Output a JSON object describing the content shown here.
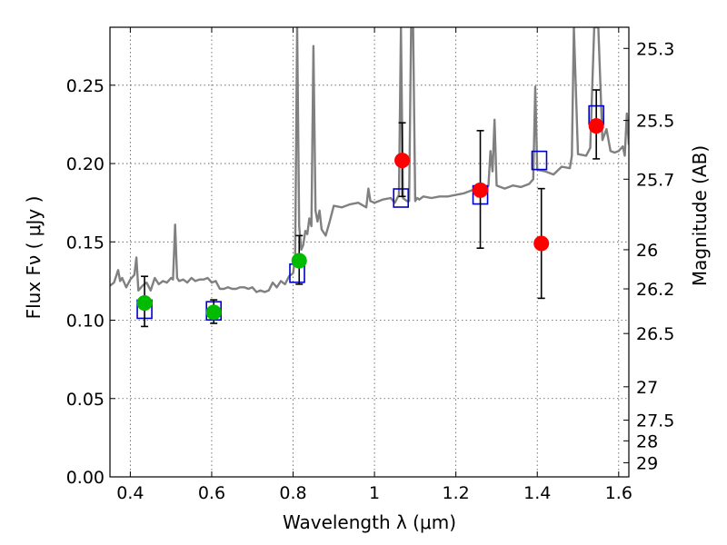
{
  "chart_data": {
    "type": "scatter",
    "xlabel": "Wavelength  λ (μm)",
    "ylabel": "Flux  Fν  ( μJy )",
    "ylabel_right": "Magnitude (AB)",
    "xlim": [
      0.35,
      1.625
    ],
    "ylim": [
      0.0,
      0.287
    ],
    "x_ticks": [
      0.4,
      0.6,
      0.8,
      1.0,
      1.2,
      1.4,
      1.6
    ],
    "x_tick_labels": [
      "0.4",
      "0.6",
      "0.8",
      "1",
      "1.2",
      "1.4",
      "1.6"
    ],
    "y_ticks": [
      0.0,
      0.05,
      0.1,
      0.15,
      0.2,
      0.25
    ],
    "y_tick_labels": [
      "0.00",
      "0.05",
      "0.10",
      "0.15",
      "0.20",
      "0.25"
    ],
    "mag_ticks": [
      {
        "label": "25.3",
        "flux": 0.2735
      },
      {
        "label": "25.5",
        "flux": 0.2275
      },
      {
        "label": "25.7",
        "flux": 0.19
      },
      {
        "label": "26",
        "flux": 0.145
      },
      {
        "label": "26.2",
        "flux": 0.12
      },
      {
        "label": "26.5",
        "flux": 0.0915
      },
      {
        "label": "27",
        "flux": 0.0575
      },
      {
        "label": "27.5",
        "flux": 0.0362
      },
      {
        "label": "28",
        "flux": 0.023
      },
      {
        "label": "29",
        "flux": 0.009
      }
    ],
    "grid": true,
    "series": [
      {
        "marker": "line",
        "color": "#808080",
        "x": [
          0.35,
          0.36,
          0.37,
          0.375,
          0.38,
          0.39,
          0.4,
          0.41,
          0.415,
          0.42,
          0.43,
          0.44,
          0.45,
          0.46,
          0.47,
          0.48,
          0.49,
          0.5,
          0.505,
          0.51,
          0.515,
          0.52,
          0.53,
          0.54,
          0.55,
          0.56,
          0.57,
          0.58,
          0.59,
          0.6,
          0.61,
          0.62,
          0.63,
          0.64,
          0.65,
          0.66,
          0.67,
          0.68,
          0.69,
          0.7,
          0.71,
          0.72,
          0.73,
          0.74,
          0.75,
          0.76,
          0.77,
          0.78,
          0.79,
          0.8,
          0.805,
          0.81,
          0.815,
          0.82,
          0.825,
          0.83,
          0.835,
          0.84,
          0.845,
          0.85,
          0.855,
          0.86,
          0.865,
          0.87,
          0.88,
          0.89,
          0.9,
          0.92,
          0.94,
          0.96,
          0.98,
          0.985,
          0.99,
          1.0,
          1.02,
          1.04,
          1.05,
          1.06,
          1.065,
          1.07,
          1.08,
          1.085,
          1.09,
          1.095,
          1.1,
          1.105,
          1.11,
          1.12,
          1.14,
          1.16,
          1.18,
          1.2,
          1.22,
          1.24,
          1.25,
          1.26,
          1.27,
          1.28,
          1.285,
          1.29,
          1.295,
          1.3,
          1.32,
          1.34,
          1.36,
          1.38,
          1.39,
          1.395,
          1.4,
          1.42,
          1.44,
          1.46,
          1.48,
          1.485,
          1.49,
          1.5,
          1.52,
          1.53,
          1.54,
          1.55,
          1.56,
          1.57,
          1.58,
          1.59,
          1.6,
          1.61,
          1.615,
          1.62,
          1.625
        ],
        "y": [
          0.122,
          0.124,
          0.132,
          0.125,
          0.127,
          0.121,
          0.126,
          0.129,
          0.14,
          0.119,
          0.122,
          0.124,
          0.119,
          0.127,
          0.123,
          0.125,
          0.124,
          0.127,
          0.126,
          0.161,
          0.127,
          0.125,
          0.126,
          0.124,
          0.127,
          0.125,
          0.126,
          0.126,
          0.127,
          0.124,
          0.125,
          0.12,
          0.12,
          0.121,
          0.12,
          0.12,
          0.121,
          0.121,
          0.12,
          0.121,
          0.118,
          0.119,
          0.118,
          0.119,
          0.124,
          0.121,
          0.125,
          0.123,
          0.128,
          0.13,
          0.14,
          0.287,
          0.16,
          0.145,
          0.148,
          0.157,
          0.155,
          0.165,
          0.16,
          0.275,
          0.17,
          0.163,
          0.17,
          0.158,
          0.154,
          0.163,
          0.173,
          0.172,
          0.174,
          0.175,
          0.172,
          0.184,
          0.176,
          0.175,
          0.177,
          0.178,
          0.175,
          0.18,
          0.287,
          0.178,
          0.176,
          0.176,
          0.287,
          0.287,
          0.176,
          0.178,
          0.177,
          0.179,
          0.178,
          0.179,
          0.179,
          0.18,
          0.181,
          0.183,
          0.183,
          0.181,
          0.182,
          0.186,
          0.208,
          0.195,
          0.228,
          0.186,
          0.184,
          0.186,
          0.185,
          0.187,
          0.19,
          0.249,
          0.196,
          0.195,
          0.193,
          0.198,
          0.197,
          0.205,
          0.287,
          0.206,
          0.205,
          0.21,
          0.287,
          0.287,
          0.215,
          0.222,
          0.208,
          0.207,
          0.208,
          0.211,
          0.205,
          0.232,
          0.212
        ]
      },
      {
        "marker": "open-square",
        "color": "#0000cc",
        "x": [
          0.435,
          0.605,
          0.81,
          1.065,
          1.26,
          1.405,
          1.545
        ],
        "y": [
          0.107,
          0.106,
          0.13,
          0.178,
          0.18,
          0.202,
          0.231
        ]
      },
      {
        "marker": "circle",
        "color": "#00bb00",
        "x": [
          0.435,
          0.605,
          0.815
        ],
        "y": [
          0.111,
          0.105,
          0.138
        ],
        "err_lo": [
          0.096,
          0.098,
          0.123
        ],
        "err_hi": [
          0.128,
          0.113,
          0.154
        ]
      },
      {
        "marker": "circle",
        "color": "#ff0000",
        "x": [
          1.068,
          1.26,
          1.41,
          1.545
        ],
        "y": [
          0.202,
          0.183,
          0.149,
          0.224
        ],
        "err_lo": [
          0.179,
          0.146,
          0.114,
          0.203
        ],
        "err_hi": [
          0.226,
          0.221,
          0.184,
          0.247
        ]
      }
    ]
  }
}
